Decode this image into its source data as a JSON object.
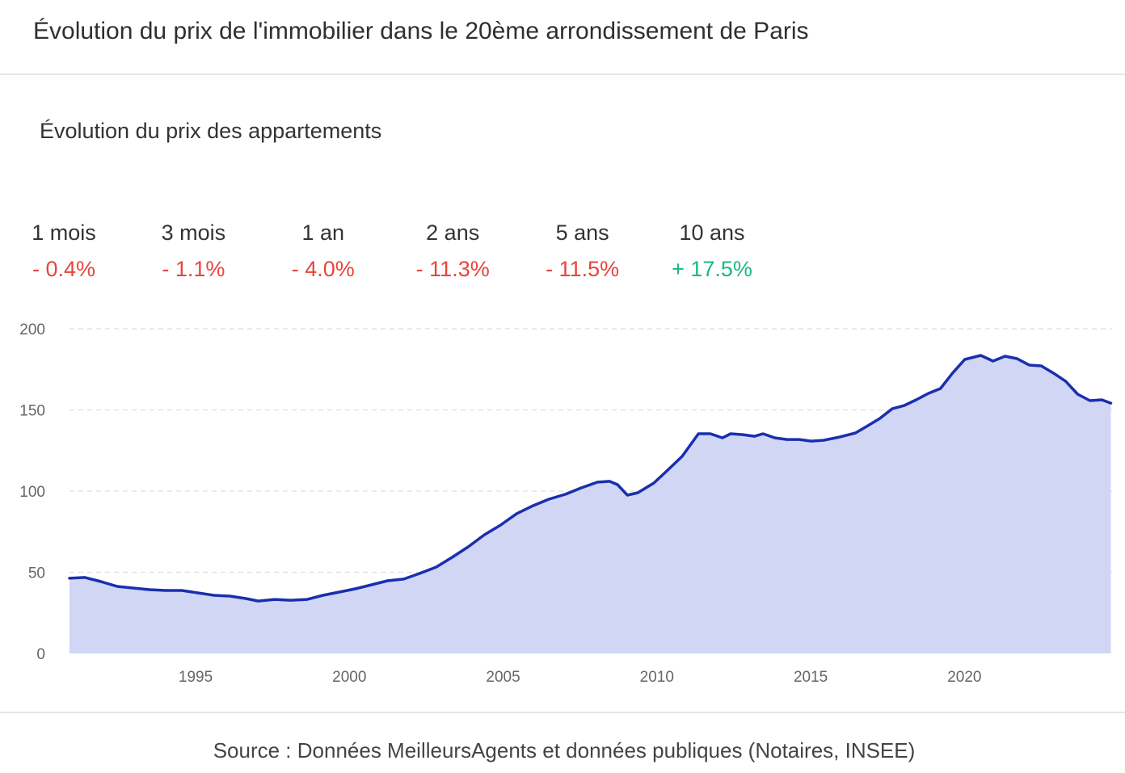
{
  "header": {
    "title": "Évolution du prix de l'immobilier dans le 20ème arrondissement de Paris"
  },
  "stats": [
    {
      "label": "1 mois",
      "value": "- 0.4%",
      "color": "#e8443c"
    },
    {
      "label": "3 mois",
      "value": "- 1.1%",
      "color": "#e8443c"
    },
    {
      "label": "1 an",
      "value": "- 4.0%",
      "color": "#e8443c"
    },
    {
      "label": "2 ans",
      "value": "- 11.3%",
      "color": "#e8443c"
    },
    {
      "label": "5 ans",
      "value": "- 11.5%",
      "color": "#e8443c"
    },
    {
      "label": "10 ans",
      "value": "+ 17.5%",
      "color": "#18b888"
    }
  ],
  "chart_data": {
    "type": "area",
    "title": "Évolution du prix des appartements",
    "x": [
      1990.9,
      1991.4,
      1991.92,
      1992.45,
      1992.97,
      1993.5,
      1994.02,
      1994.55,
      1995.07,
      1995.6,
      1996.12,
      1996.65,
      1997.04,
      1997.57,
      1998.09,
      1998.62,
      1999.14,
      1999.67,
      2000.19,
      2000.72,
      2001.24,
      2001.77,
      2002.29,
      2002.82,
      2003.34,
      2003.87,
      2004.39,
      2004.92,
      2005.44,
      2005.97,
      2006.49,
      2007.02,
      2007.54,
      2008.07,
      2008.46,
      2008.72,
      2009.04,
      2009.38,
      2009.9,
      2010.3,
      2010.82,
      2011.35,
      2011.74,
      2012.13,
      2012.4,
      2012.79,
      2013.18,
      2013.45,
      2013.84,
      2014.23,
      2014.63,
      2015.02,
      2015.41,
      2015.94,
      2016.46,
      2016.86,
      2017.25,
      2017.65,
      2018.04,
      2018.43,
      2018.83,
      2019.22,
      2019.61,
      2020.01,
      2020.53,
      2020.93,
      2021.32,
      2021.71,
      2022.11,
      2022.5,
      2022.9,
      2023.29,
      2023.68,
      2024.08,
      2024.47,
      2024.76
    ],
    "values": [
      46.3,
      46.8,
      44.3,
      41.3,
      40.3,
      39.3,
      38.8,
      38.8,
      37.3,
      35.8,
      35.3,
      33.8,
      32.3,
      33.3,
      32.8,
      33.3,
      35.8,
      37.8,
      39.8,
      42.3,
      44.8,
      45.8,
      49.3,
      53.2,
      59.2,
      65.7,
      73.1,
      79.1,
      86.1,
      91.0,
      95.0,
      98.0,
      102.0,
      105.5,
      106.0,
      104.0,
      97.5,
      99.0,
      105.0,
      112.0,
      121.4,
      135.3,
      135.3,
      132.8,
      135.3,
      134.8,
      133.8,
      135.3,
      132.8,
      131.8,
      131.8,
      130.8,
      131.3,
      133.3,
      135.8,
      140.3,
      144.8,
      150.7,
      152.7,
      156.2,
      160.2,
      163.2,
      172.6,
      181.1,
      183.6,
      180.1,
      183.1,
      181.6,
      177.6,
      177.1,
      172.6,
      167.7,
      159.7,
      155.7,
      156.2,
      154.2
    ],
    "color": "#1a2fae",
    "fill": "#d1d6f5",
    "xlim": [
      1990.9,
      2024.8
    ],
    "xticks": [
      1995,
      2000,
      2005,
      2010,
      2015,
      2020
    ],
    "ylim": [
      0,
      200
    ],
    "yticks": [
      0,
      50,
      100,
      150,
      200
    ],
    "grid": true
  },
  "footer": {
    "source": "Source : Données MeilleursAgents et données publiques (Notaires, INSEE)"
  }
}
